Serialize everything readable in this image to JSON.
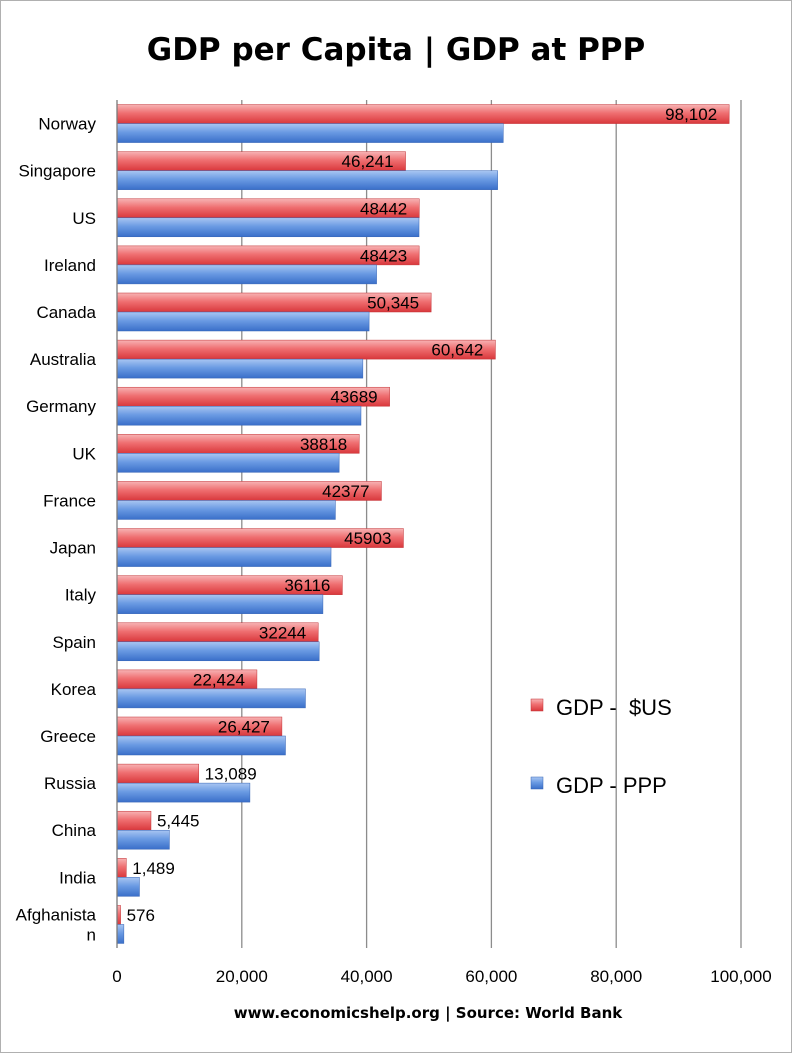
{
  "chart_data": {
    "type": "bar",
    "orientation": "horizontal",
    "title": "GDP per Capita | GDP at PPP",
    "footer": "www.economicshelp.org | Source: World Bank",
    "xlim": [
      0,
      100000
    ],
    "xticks": [
      0,
      20000,
      40000,
      60000,
      80000,
      100000
    ],
    "xtick_labels": [
      "0",
      "20,000",
      "40,000",
      "60,000",
      "80,000",
      "100,000"
    ],
    "grid": true,
    "legend_position": "right-middle",
    "categories": [
      [
        "Norway"
      ],
      [
        "Singapore"
      ],
      [
        "US"
      ],
      [
        "Ireland"
      ],
      [
        "Canada"
      ],
      [
        "Australia"
      ],
      [
        "Germany"
      ],
      [
        "UK"
      ],
      [
        "France"
      ],
      [
        "Japan"
      ],
      [
        "Italy"
      ],
      [
        "Spain"
      ],
      [
        "Korea"
      ],
      [
        "Greece"
      ],
      [
        "Russia"
      ],
      [
        "China"
      ],
      [
        "India"
      ],
      [
        "Afghanista",
        "n"
      ]
    ],
    "series": [
      {
        "name": "GDP -  $US",
        "color": "#e8474a",
        "values": [
          98102,
          46241,
          48442,
          48423,
          50345,
          60642,
          43689,
          38818,
          42377,
          45903,
          36116,
          32244,
          22424,
          26427,
          13089,
          5445,
          1489,
          576
        ],
        "data_labels": [
          "98,102",
          "46,241",
          "48442",
          "48423",
          "50,345",
          "60,642",
          "43689",
          "38818",
          "42377",
          "45903",
          "36116",
          "32244",
          "22,424",
          "26,427",
          "13,089",
          "5,445",
          "1,489",
          "576"
        ]
      },
      {
        "name": "GDP - PPP",
        "color": "#4f84d8",
        "values": [
          61900,
          61000,
          48400,
          41600,
          40400,
          39400,
          39100,
          35600,
          35000,
          34300,
          33000,
          32400,
          30200,
          27000,
          21300,
          8400,
          3600,
          1100
        ]
      }
    ]
  }
}
